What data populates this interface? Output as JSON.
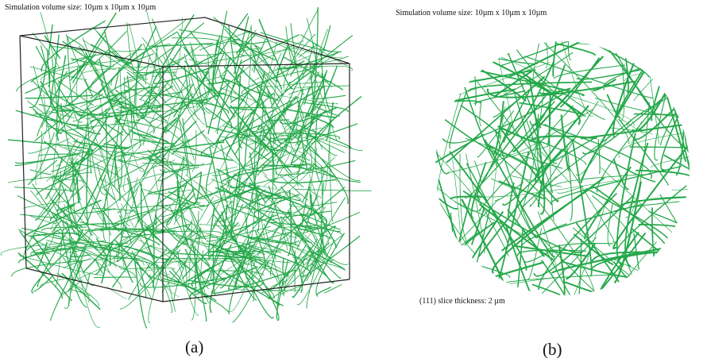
{
  "panel_a": {
    "header": "Simulation volume size: 10µm x 10µm x 10µm",
    "caption": "(a)"
  },
  "panel_b": {
    "header": "Simulation volume size: 10µm x 10µm x 10µm",
    "note": "(111) slice thickness: 2 µm",
    "caption": "(b)"
  }
}
